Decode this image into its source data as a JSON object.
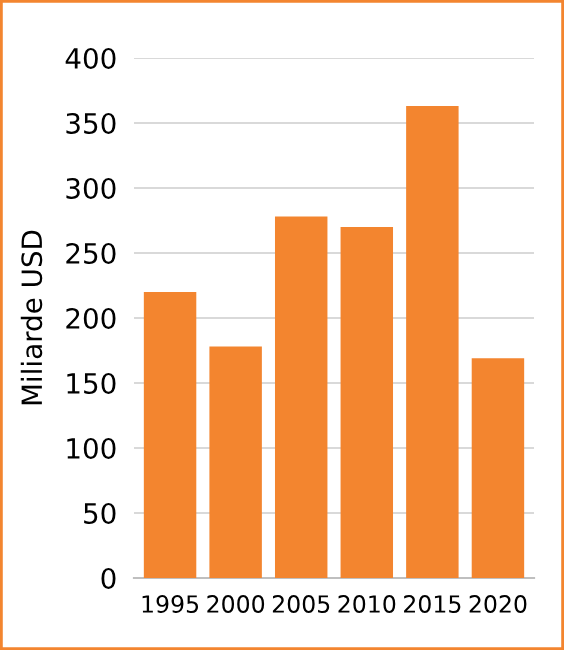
{
  "chart_data": {
    "type": "bar",
    "ylabel": "Miliarde USD",
    "categories": [
      "1995",
      "2000",
      "2005",
      "2010",
      "2015",
      "2020"
    ],
    "values": [
      220,
      178,
      278,
      270,
      363,
      169
    ],
    "color": "#f3852f",
    "ylim": [
      0,
      400
    ],
    "yticks": [
      0,
      50,
      100,
      150,
      200,
      250,
      300,
      350,
      400
    ],
    "grid": "y"
  }
}
